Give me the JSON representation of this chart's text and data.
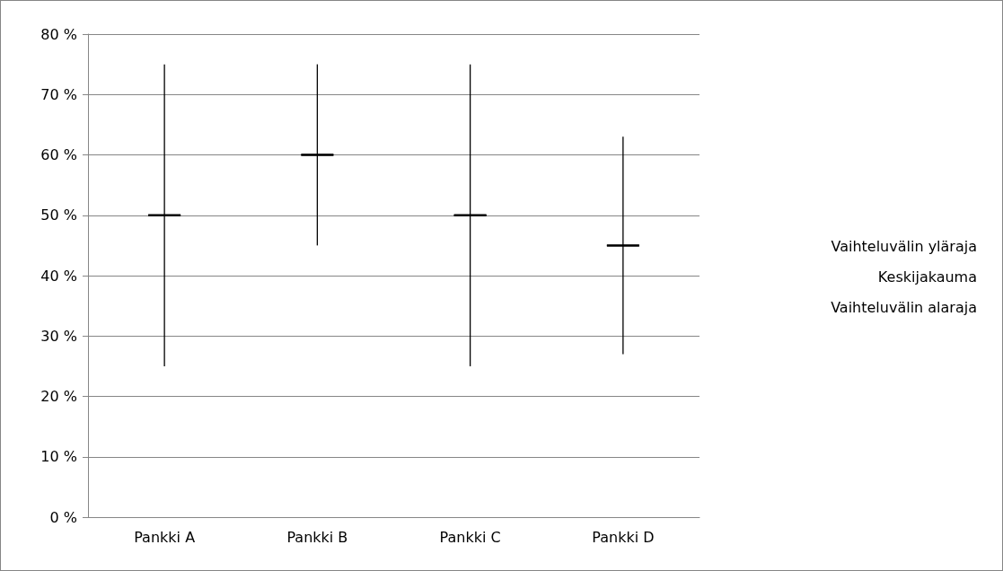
{
  "chart_data": {
    "type": "box",
    "categories": [
      "Pankki A",
      "Pankki B",
      "Pankki C",
      "Pankki D"
    ],
    "boxes": [
      {
        "low": 25,
        "q1": 50,
        "median": 50,
        "q3": 50,
        "high": 75
      },
      {
        "low": 45,
        "q1": 60,
        "median": 60,
        "q3": 60,
        "high": 75
      },
      {
        "low": 25,
        "q1": 50,
        "median": 50,
        "q3": 50,
        "high": 75
      },
      {
        "low": 27,
        "q1": 45,
        "median": 45,
        "q3": 45,
        "high": 63
      }
    ],
    "annotations": [
      "Vaihteluvälin yläraja",
      "Keskijakauma",
      "Vaihteluvälin alaraja"
    ],
    "ylim": [
      0,
      80
    ],
    "yticks": [
      {
        "value": 0,
        "label": "0 %"
      },
      {
        "value": 10,
        "label": "10 %"
      },
      {
        "value": 20,
        "label": "20 %"
      },
      {
        "value": 30,
        "label": "30 %"
      },
      {
        "value": 40,
        "label": "40 %"
      },
      {
        "value": 50,
        "label": "50 %"
      },
      {
        "value": 60,
        "label": "60 %"
      },
      {
        "value": 70,
        "label": "70 %"
      },
      {
        "value": 80,
        "label": "80 %"
      }
    ],
    "grid": "y"
  }
}
